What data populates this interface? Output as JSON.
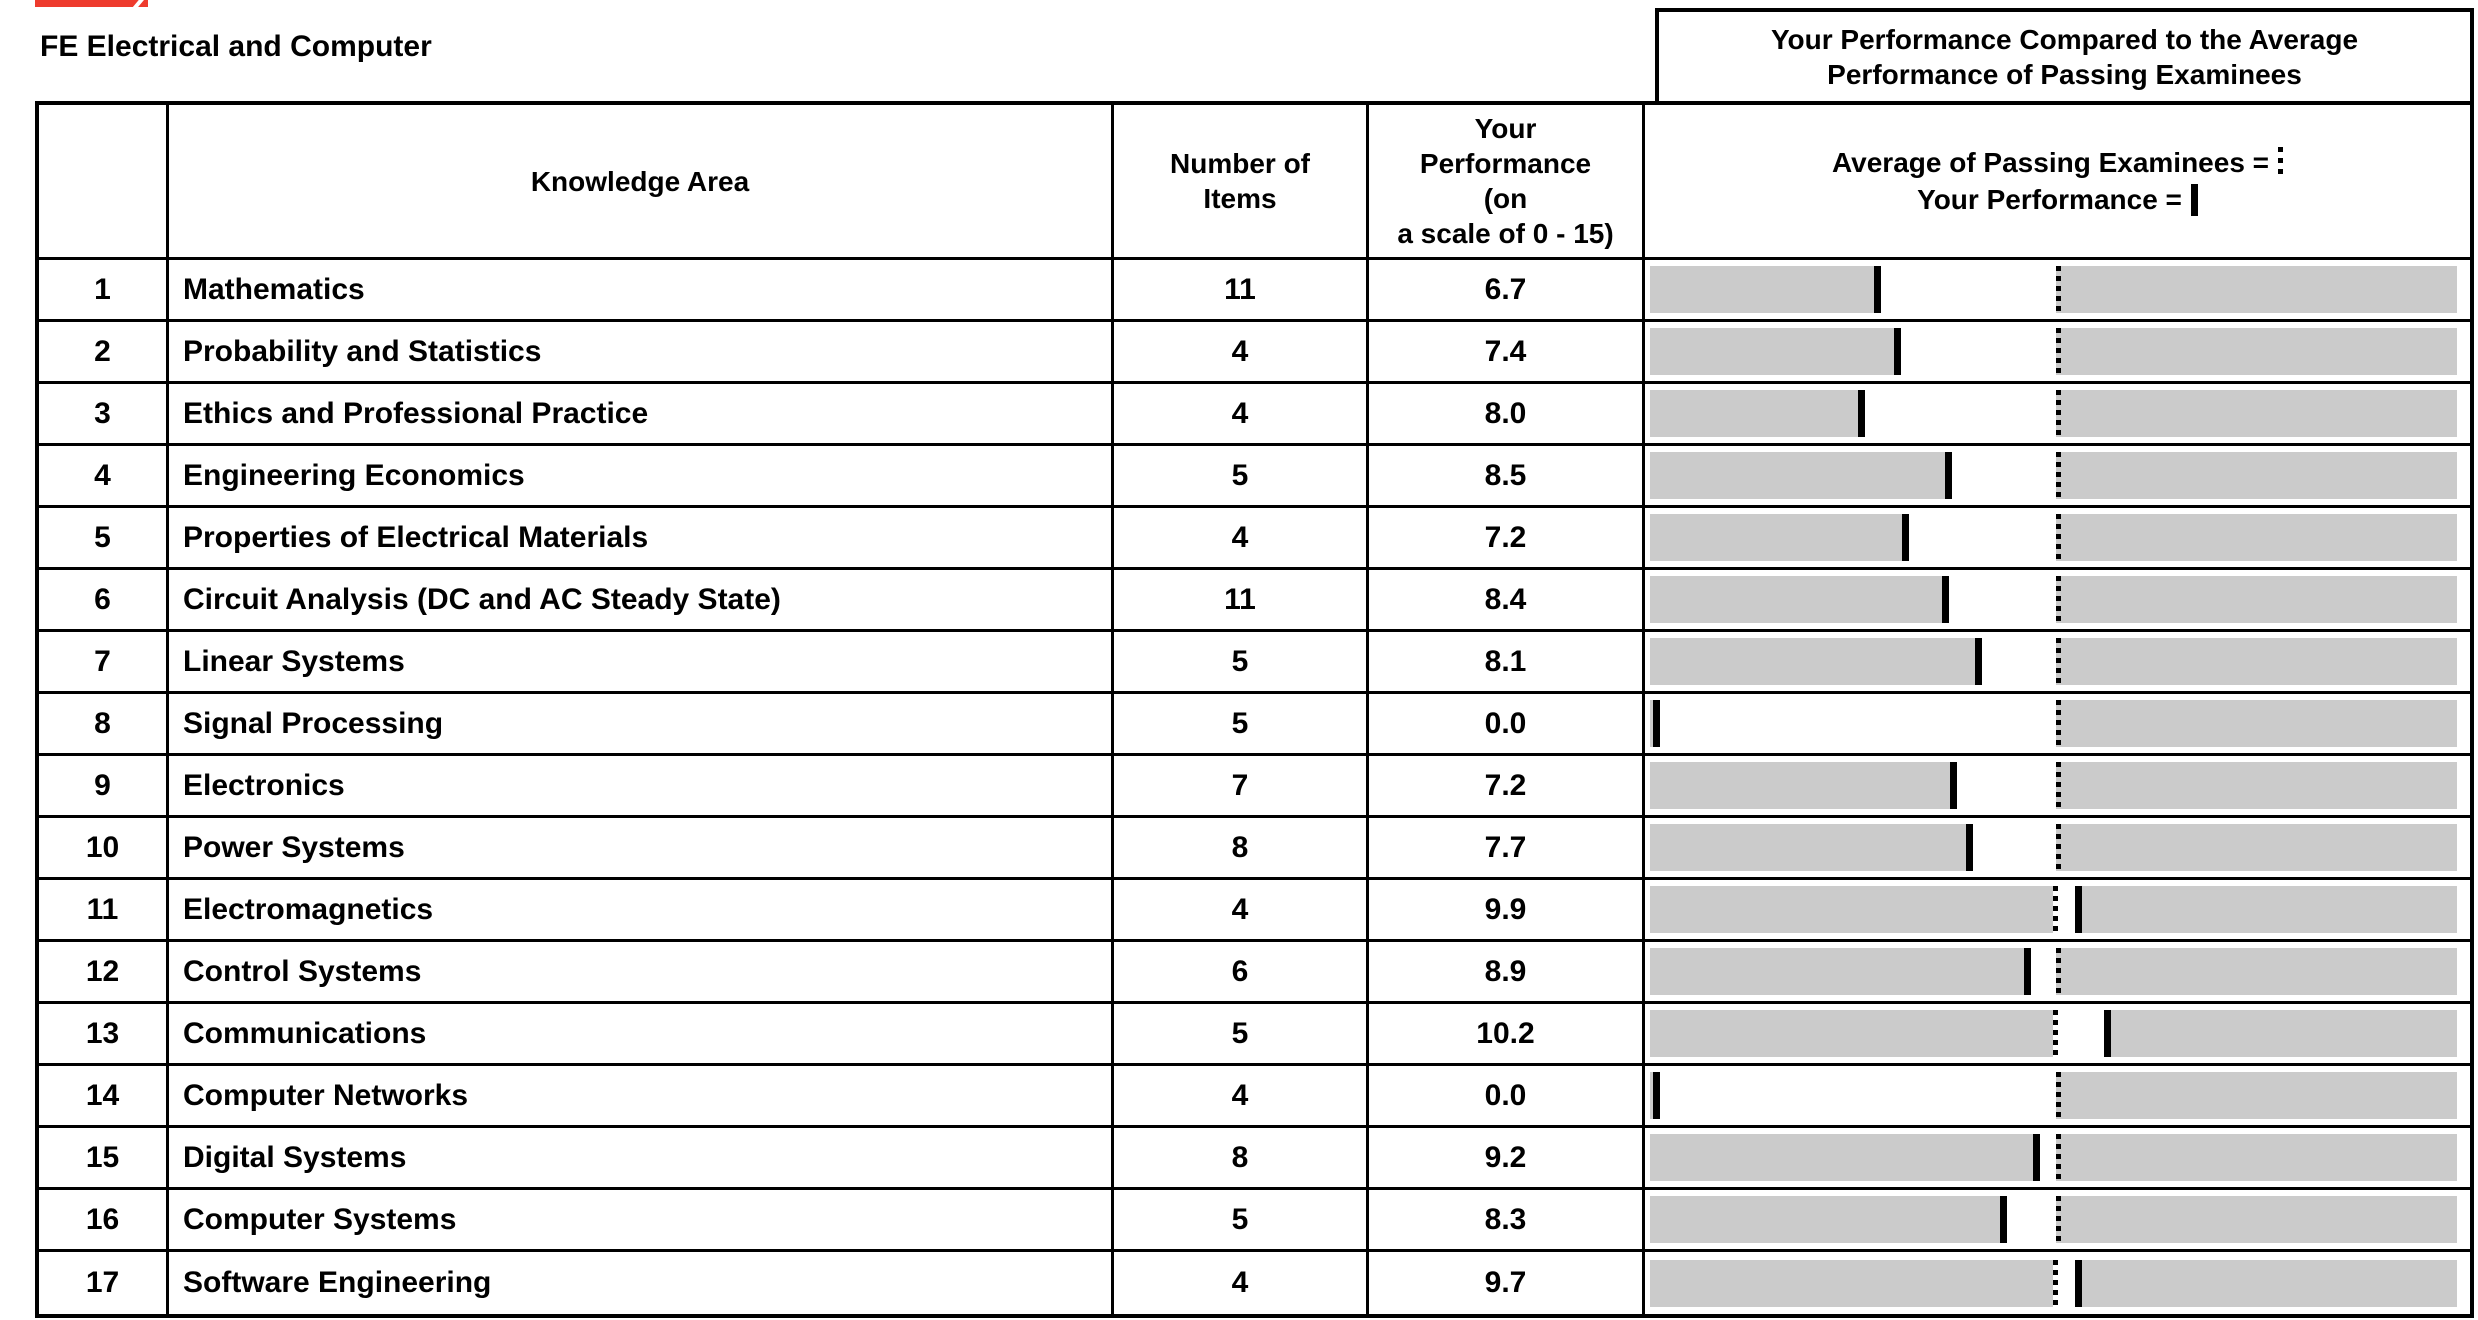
{
  "page": {
    "title": "FE Electrical and Computer",
    "comparison_box": "Your Performance Compared to the Average\nPerformance of Passing Examinees"
  },
  "table": {
    "headers": {
      "knowledge_area": "Knowledge Area",
      "number_of_items": "Number of\nItems",
      "your_performance": "Your\nPerformance\n(on\na scale of 0 - 15)",
      "legend_average": "Average of Passing Examinees =",
      "legend_your": "Your Performance ="
    },
    "rows": [
      {
        "num": "1",
        "area": "Mathematics",
        "items": "11",
        "score": "6.7",
        "your_pct": 27.7,
        "avg_pct": 50.3
      },
      {
        "num": "2",
        "area": "Probability and Statistics",
        "items": "4",
        "score": "7.4",
        "your_pct": 30.2,
        "avg_pct": 50.3
      },
      {
        "num": "3",
        "area": "Ethics and Professional Practice",
        "items": "4",
        "score": "8.0",
        "your_pct": 25.8,
        "avg_pct": 50.3
      },
      {
        "num": "4",
        "area": "Engineering Economics",
        "items": "5",
        "score": "8.5",
        "your_pct": 36.6,
        "avg_pct": 50.3
      },
      {
        "num": "5",
        "area": "Properties of Electrical Materials",
        "items": "4",
        "score": "7.2",
        "your_pct": 31.2,
        "avg_pct": 50.3
      },
      {
        "num": "6",
        "area": "Circuit Analysis (DC and AC Steady State)",
        "items": "11",
        "score": "8.4",
        "your_pct": 36.2,
        "avg_pct": 50.3
      },
      {
        "num": "7",
        "area": "Linear Systems",
        "items": "5",
        "score": "8.1",
        "your_pct": 40.3,
        "avg_pct": 50.3
      },
      {
        "num": "8",
        "area": "Signal Processing",
        "items": "5",
        "score": "0.0",
        "your_pct": 0.4,
        "avg_pct": 50.3
      },
      {
        "num": "9",
        "area": "Electronics",
        "items": "7",
        "score": "7.2",
        "your_pct": 37.2,
        "avg_pct": 50.3
      },
      {
        "num": "10",
        "area": "Power Systems",
        "items": "8",
        "score": "7.7",
        "your_pct": 39.2,
        "avg_pct": 50.3
      },
      {
        "num": "11",
        "area": "Electromagnetics",
        "items": "4",
        "score": "9.9",
        "your_pct": 53.5,
        "avg_pct": 49.9
      },
      {
        "num": "12",
        "area": "Control Systems",
        "items": "6",
        "score": "8.9",
        "your_pct": 46.4,
        "avg_pct": 50.3
      },
      {
        "num": "13",
        "area": "Communications",
        "items": "5",
        "score": "10.2",
        "your_pct": 57.1,
        "avg_pct": 49.9
      },
      {
        "num": "14",
        "area": "Computer Networks",
        "items": "4",
        "score": "0.0",
        "your_pct": 0.4,
        "avg_pct": 50.3
      },
      {
        "num": "15",
        "area": "Digital Systems",
        "items": "8",
        "score": "9.2",
        "your_pct": 47.4,
        "avg_pct": 50.3
      },
      {
        "num": "16",
        "area": "Computer Systems",
        "items": "5",
        "score": "8.3",
        "your_pct": 43.4,
        "avg_pct": 50.3
      },
      {
        "num": "17",
        "area": "Software Engineering",
        "items": "4",
        "score": "9.7",
        "your_pct": 53.5,
        "avg_pct": 49.9
      }
    ]
  },
  "colors": {
    "bar_gray": "#cbcbcb",
    "accent_red": "#ee3b2d",
    "border": "#000000"
  },
  "chart_data": {
    "type": "bar",
    "title": "Your Performance Compared to the Average Performance of Passing Examinees",
    "categories": [
      "Mathematics",
      "Probability and Statistics",
      "Ethics and Professional Practice",
      "Engineering Economics",
      "Properties of Electrical Materials",
      "Circuit Analysis (DC and AC Steady State)",
      "Linear Systems",
      "Signal Processing",
      "Electronics",
      "Power Systems",
      "Electromagnetics",
      "Control Systems",
      "Communications",
      "Computer Networks",
      "Digital Systems",
      "Computer Systems",
      "Software Engineering"
    ],
    "series": [
      {
        "name": "Number of Items",
        "values": [
          11,
          4,
          4,
          5,
          4,
          11,
          5,
          5,
          7,
          8,
          4,
          6,
          5,
          4,
          8,
          5,
          4
        ]
      },
      {
        "name": "Your Performance (on a scale of 0 - 15)",
        "values": [
          6.7,
          7.4,
          8.0,
          8.5,
          7.2,
          8.4,
          8.1,
          0.0,
          7.2,
          7.7,
          9.9,
          8.9,
          10.2,
          0.0,
          9.2,
          8.3,
          9.7
        ]
      }
    ],
    "ylim": [
      0,
      15
    ],
    "legend_position": "column header",
    "notes": "Solid vertical marker = your performance; dashed vertical line = average of passing examinees; white band spans between the two markers on a gray bar."
  }
}
